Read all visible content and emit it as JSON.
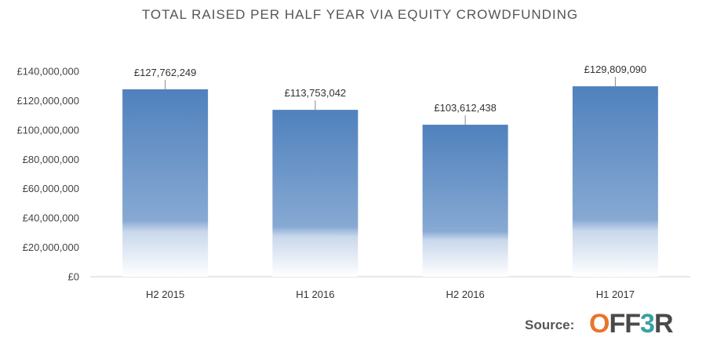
{
  "chart_data": {
    "type": "bar",
    "title": "TOTAL RAISED PER HALF YEAR VIA EQUITY CROWDFUNDING",
    "categories": [
      "H2 2015",
      "H1 2016",
      "H2 2016",
      "H1 2017"
    ],
    "values": [
      127762249,
      113753042,
      103612438,
      129809090
    ],
    "data_labels": [
      "£127,762,249",
      "£113,753,042",
      "£103,612,438",
      "£129,809,090"
    ],
    "yticks": [
      0,
      20000000,
      40000000,
      60000000,
      80000000,
      100000000,
      120000000,
      140000000
    ],
    "ytick_labels": [
      "£0",
      "£20,000,000",
      "£40,000,000",
      "£60,000,000",
      "£80,000,000",
      "£100,000,000",
      "£120,000,000",
      "£140,000,000"
    ],
    "ylim": [
      0,
      140000000
    ],
    "grid": false,
    "bar_color": "#4f81bd"
  },
  "source": {
    "label": "Source:",
    "logo_text": "OFF3R",
    "logo_colors": [
      "#e8752a",
      "#4a4a4a",
      "#4a4a4a",
      "#3aa0a0",
      "#4a4a4a"
    ]
  }
}
